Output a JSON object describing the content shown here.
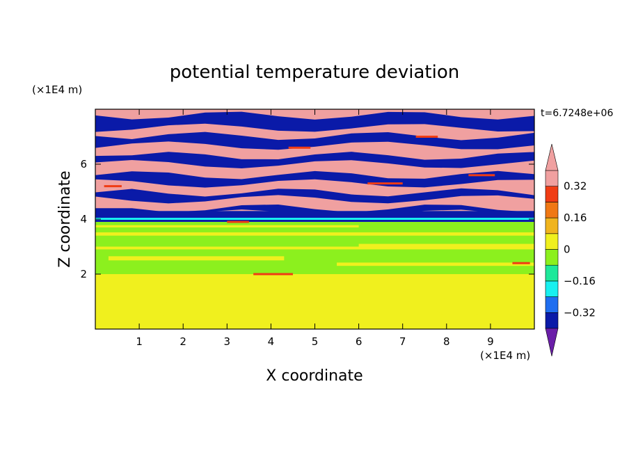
{
  "chart_data": {
    "type": "heatmap",
    "title": "potential temperature deviation",
    "xlabel": "X coordinate",
    "ylabel": "Z coordinate",
    "x_unit": "(×1E4 m)",
    "y_unit": "(×1E4 m)",
    "time_label": "t=6.7248e+06",
    "xlim": [
      0,
      10
    ],
    "ylim": [
      0,
      8
    ],
    "x_ticks": [
      1,
      2,
      3,
      4,
      5,
      6,
      7,
      8,
      9
    ],
    "y_ticks": [
      2,
      4,
      6
    ],
    "colorbar": {
      "levels": [
        -0.4,
        -0.32,
        -0.24,
        -0.16,
        -0.08,
        0,
        0.08,
        0.16,
        0.24,
        0.32,
        0.4
      ],
      "tick_labels": [
        "0.32",
        "0.16",
        "0",
        "−0.16",
        "−0.32"
      ],
      "tick_values": [
        0.32,
        0.16,
        0,
        -0.16,
        -0.32
      ],
      "colors_bottom_to_top": [
        "#6a1ea8",
        "#0a1aa8",
        "#1f6ef0",
        "#18f0f0",
        "#1ee89a",
        "#8cf01e",
        "#f0f01e",
        "#f0b41e",
        "#f07814",
        "#f03c14",
        "#f0a0a0"
      ],
      "extend": "both"
    },
    "layers": [
      {
        "z_from": 0.0,
        "z_to": 2.0,
        "dominant_value": 0.04,
        "secondary_value": 0.06,
        "pattern": "blotches"
      },
      {
        "z_from": 2.0,
        "z_to": 3.9,
        "dominant_value": -0.04,
        "secondary_value": 0.06,
        "pattern": "streaks"
      },
      {
        "z_from": 3.9,
        "z_to": 4.3,
        "dominant_value": -0.36,
        "pattern": "band"
      },
      {
        "z_from": 4.3,
        "z_to": 8.0,
        "dominant_value": 0.4,
        "secondary_value": -0.4,
        "pattern": "alternating stripes"
      }
    ]
  }
}
